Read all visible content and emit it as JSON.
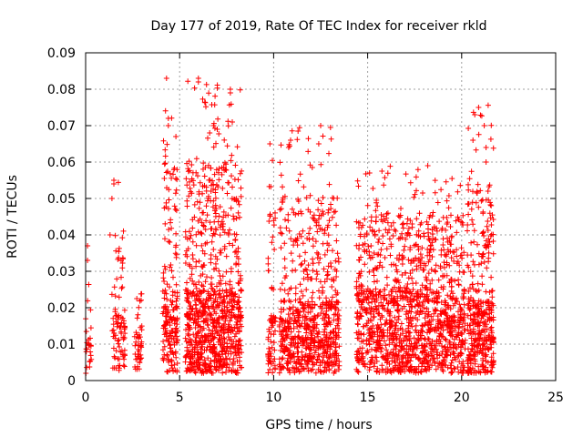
{
  "chart_data": {
    "type": "scatter",
    "title": "Day 177 of 2019, Rate Of TEC Index for receiver rkld",
    "xlabel": "GPS time / hours",
    "ylabel": "ROTI / TECUs",
    "xlim": [
      0,
      25
    ],
    "ylim": [
      0,
      0.09
    ],
    "grid": true,
    "marker": "+",
    "color": "#ff0000",
    "x_ticks": [
      {
        "value": 0,
        "label": "0"
      },
      {
        "value": 5,
        "label": "5"
      },
      {
        "value": 10,
        "label": "10"
      },
      {
        "value": 15,
        "label": "15"
      },
      {
        "value": 20,
        "label": "20"
      },
      {
        "value": 25,
        "label": "25"
      }
    ],
    "y_ticks": [
      {
        "value": 0,
        "label": "0"
      },
      {
        "value": 0.01,
        "label": "0.01"
      },
      {
        "value": 0.02,
        "label": "0.02"
      },
      {
        "value": 0.03,
        "label": "0.03"
      },
      {
        "value": 0.04,
        "label": "0.04"
      },
      {
        "value": 0.05,
        "label": "0.05"
      },
      {
        "value": 0.06,
        "label": "0.06"
      },
      {
        "value": 0.07,
        "label": "0.07"
      },
      {
        "value": 0.08,
        "label": "0.08"
      },
      {
        "value": 0.09,
        "label": "0.09"
      }
    ],
    "clusters": [
      {
        "x_start": 0.0,
        "x_end": 0.3,
        "density": 25,
        "base_max": 0.012,
        "peak": 0.037
      },
      {
        "x_start": 1.4,
        "x_end": 2.1,
        "density": 90,
        "base_max": 0.018,
        "peak": 0.055
      },
      {
        "x_start": 2.6,
        "x_end": 3.0,
        "density": 45,
        "base_max": 0.013,
        "peak": 0.025
      },
      {
        "x_start": 4.1,
        "x_end": 4.9,
        "density": 190,
        "base_max": 0.025,
        "peak": 0.083
      },
      {
        "x_start": 5.3,
        "x_end": 8.3,
        "density": 900,
        "base_max": 0.025,
        "peak": 0.083
      },
      {
        "x_start": 9.7,
        "x_end": 10.1,
        "density": 70,
        "base_max": 0.018,
        "peak": 0.066
      },
      {
        "x_start": 10.3,
        "x_end": 13.5,
        "density": 700,
        "base_max": 0.022,
        "peak": 0.07
      },
      {
        "x_start": 14.4,
        "x_end": 20.2,
        "density": 1300,
        "base_max": 0.025,
        "peak": 0.059
      },
      {
        "x_start": 20.3,
        "x_end": 21.7,
        "density": 380,
        "base_max": 0.022,
        "peak": 0.076
      }
    ],
    "notable_points": [
      {
        "x": 4.3,
        "y": 0.083
      },
      {
        "x": 6.0,
        "y": 0.083
      },
      {
        "x": 6.0,
        "y": 0.082
      },
      {
        "x": 7.7,
        "y": 0.08
      },
      {
        "x": 7.7,
        "y": 0.079
      },
      {
        "x": 4.4,
        "y": 0.072
      },
      {
        "x": 4.4,
        "y": 0.07
      },
      {
        "x": 7.8,
        "y": 0.071
      },
      {
        "x": 6.8,
        "y": 0.07
      },
      {
        "x": 7.0,
        "y": 0.069
      },
      {
        "x": 6.6,
        "y": 0.068
      },
      {
        "x": 4.8,
        "y": 0.067
      },
      {
        "x": 9.8,
        "y": 0.065
      },
      {
        "x": 10.9,
        "y": 0.066
      },
      {
        "x": 10.8,
        "y": 0.064
      },
      {
        "x": 12.5,
        "y": 0.07
      },
      {
        "x": 12.4,
        "y": 0.065
      },
      {
        "x": 20.9,
        "y": 0.075
      },
      {
        "x": 20.7,
        "y": 0.073
      },
      {
        "x": 21.2,
        "y": 0.07
      },
      {
        "x": 20.6,
        "y": 0.066
      },
      {
        "x": 21.3,
        "y": 0.064
      },
      {
        "x": 21.3,
        "y": 0.06
      },
      {
        "x": 18.2,
        "y": 0.059
      },
      {
        "x": 15.1,
        "y": 0.057
      },
      {
        "x": 1.5,
        "y": 0.055
      },
      {
        "x": 1.5,
        "y": 0.054
      },
      {
        "x": 1.4,
        "y": 0.05
      },
      {
        "x": 1.3,
        "y": 0.04
      },
      {
        "x": 0.1,
        "y": 0.037
      },
      {
        "x": 0.1,
        "y": 0.033
      },
      {
        "x": 21.4,
        "y": 0.052
      }
    ]
  }
}
